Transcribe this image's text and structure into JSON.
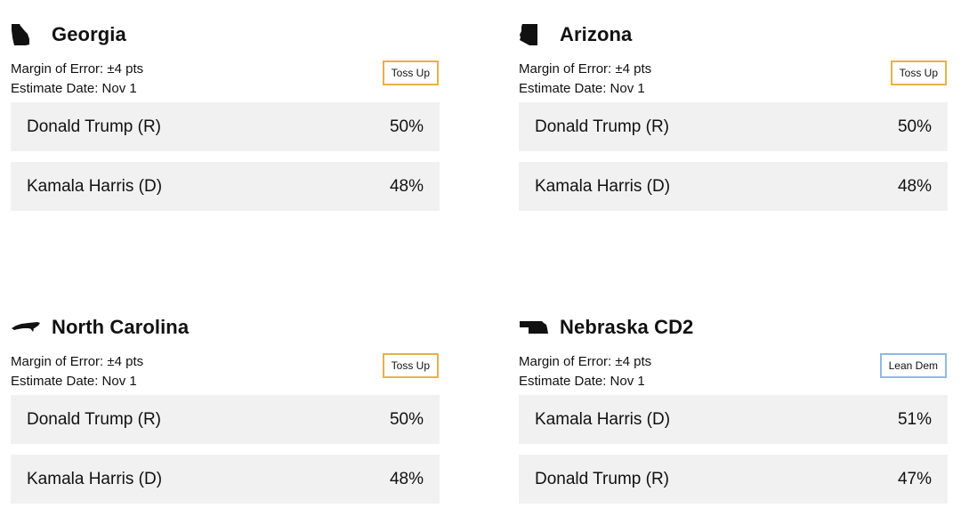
{
  "labels": {
    "moe_prefix": "Margin of Error:",
    "date_prefix": "Estimate Date:"
  },
  "races": [
    {
      "state": "Georgia",
      "icon": "georgia-map-icon",
      "margin_of_error": "±4 pts",
      "estimate_date": "Nov 1",
      "rating": "Toss Up",
      "rating_color": "#e8b04a",
      "candidates": [
        {
          "name": "Donald Trump (R)",
          "pct": "50%"
        },
        {
          "name": "Kamala Harris (D)",
          "pct": "48%"
        }
      ]
    },
    {
      "state": "Arizona",
      "icon": "arizona-map-icon",
      "margin_of_error": "±4 pts",
      "estimate_date": "Nov 1",
      "rating": "Toss Up",
      "rating_color": "#e8b04a",
      "candidates": [
        {
          "name": "Donald Trump (R)",
          "pct": "50%"
        },
        {
          "name": "Kamala Harris (D)",
          "pct": "48%"
        }
      ]
    },
    {
      "state": "North Carolina",
      "icon": "north-carolina-map-icon",
      "margin_of_error": "±4 pts",
      "estimate_date": "Nov 1",
      "rating": "Toss Up",
      "rating_color": "#e8b04a",
      "candidates": [
        {
          "name": "Donald Trump (R)",
          "pct": "50%"
        },
        {
          "name": "Kamala Harris (D)",
          "pct": "48%"
        }
      ]
    },
    {
      "state": "Nebraska CD2",
      "icon": "nebraska-map-icon",
      "margin_of_error": "±4 pts",
      "estimate_date": "Nov 1",
      "rating": "Lean Dem",
      "rating_color": "#8dbbe6",
      "candidates": [
        {
          "name": "Kamala Harris (D)",
          "pct": "51%"
        },
        {
          "name": "Donald Trump (R)",
          "pct": "47%"
        }
      ]
    }
  ]
}
